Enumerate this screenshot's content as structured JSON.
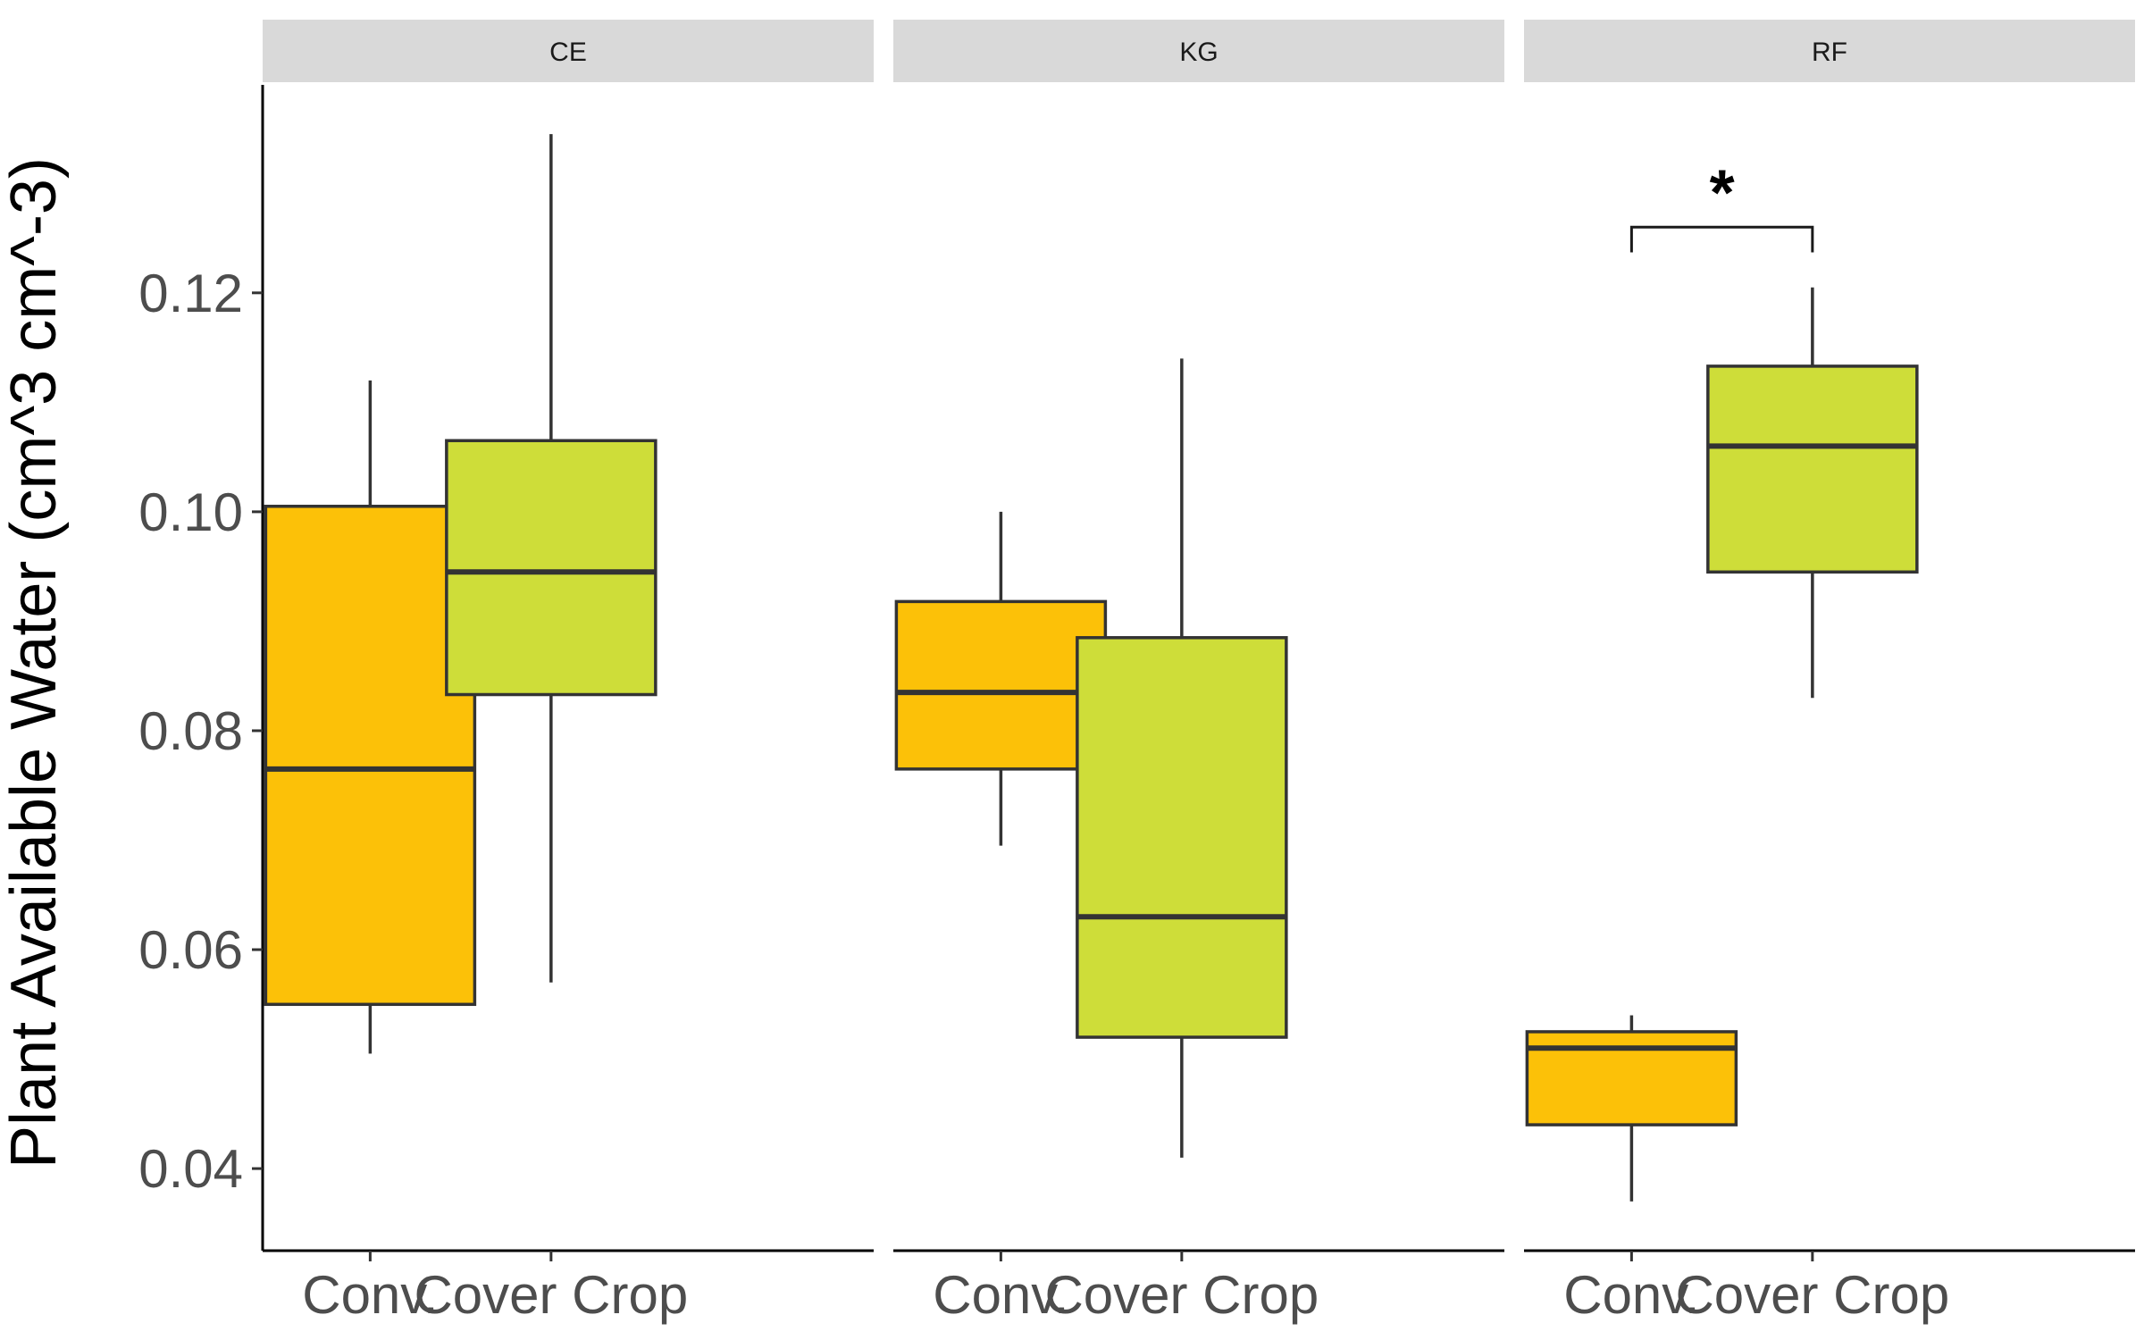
{
  "chart_data": {
    "type": "boxplot",
    "title": "",
    "ylabel": "Plant Available Water (cm^3 cm^-3)",
    "xlabel": "",
    "ylim": [
      0.0325,
      0.139
    ],
    "yticks": [
      0.04,
      0.06,
      0.08,
      0.1,
      0.12
    ],
    "ytick_labels": [
      "0.04",
      "0.06",
      "0.08",
      "0.10",
      "0.12"
    ],
    "categories": [
      "Conv.",
      "Cover Crop"
    ],
    "colors": {
      "Conv.": "#FCC108",
      "Cover Crop": "#CEDD39"
    },
    "panels": [
      {
        "label": "CE",
        "boxes": [
          {
            "category": "Conv.",
            "whisker_low": 0.0505,
            "q1": 0.055,
            "median": 0.0765,
            "q3": 0.1005,
            "whisker_high": 0.112
          },
          {
            "category": "Cover Crop",
            "whisker_low": 0.057,
            "q1": 0.0833,
            "median": 0.0945,
            "q3": 0.1065,
            "whisker_high": 0.1345
          }
        ]
      },
      {
        "label": "KG",
        "boxes": [
          {
            "category": "Conv.",
            "whisker_low": 0.0695,
            "q1": 0.0765,
            "median": 0.0835,
            "q3": 0.0918,
            "whisker_high": 0.1
          },
          {
            "category": "Cover Crop",
            "whisker_low": 0.041,
            "q1": 0.052,
            "median": 0.063,
            "q3": 0.0885,
            "whisker_high": 0.114
          }
        ]
      },
      {
        "label": "RF",
        "boxes": [
          {
            "category": "Conv.",
            "whisker_low": 0.037,
            "q1": 0.044,
            "median": 0.051,
            "q3": 0.0525,
            "whisker_high": 0.054
          },
          {
            "category": "Cover Crop",
            "whisker_low": 0.083,
            "q1": 0.0945,
            "median": 0.106,
            "q3": 0.1133,
            "whisker_high": 0.1205
          }
        ],
        "significance": {
          "label": "*",
          "between": [
            "Conv.",
            "Cover Crop"
          ],
          "bracket_y": 0.126,
          "tick_bottom": 0.1237
        }
      }
    ],
    "grid": false,
    "legend": "none"
  }
}
